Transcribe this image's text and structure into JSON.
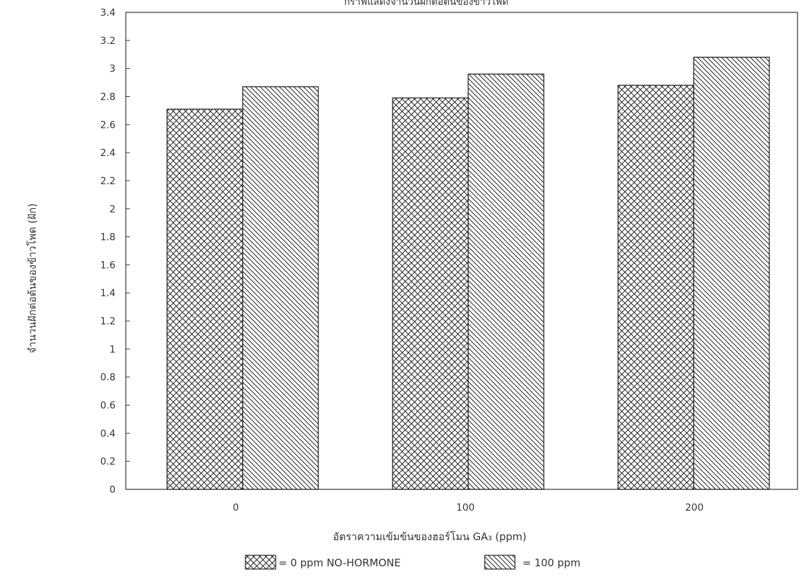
{
  "chart_data": {
    "type": "bar",
    "title": "กราฟแสดงจำนวนฝักต่อต้นของข้าวโพด",
    "xlabel": "อัตราความเข้มข้นของฮอร์โมน GA₃ (ppm)",
    "ylabel": "จำนวนฝักต่อต้นของข้าวโพด (ฝัก)",
    "categories": [
      "0",
      "100",
      "200"
    ],
    "series": [
      {
        "name": "= 0 ppm NO-HORMONE",
        "values": [
          2.71,
          2.79,
          2.88
        ]
      },
      {
        "name": "= 100 ppm",
        "values": [
          2.87,
          2.96,
          3.08
        ]
      }
    ],
    "ylim": [
      0,
      3.4
    ],
    "yticks": [
      "0",
      "0.2",
      "0.4",
      "0.6",
      "0.8",
      "1",
      "1.2",
      "1.4",
      "1.6",
      "1.8",
      "2",
      "2.2",
      "2.4",
      "2.6",
      "2.8",
      "3",
      "3.2",
      "3.4"
    ],
    "grid": false,
    "legend_position": "bottom"
  }
}
